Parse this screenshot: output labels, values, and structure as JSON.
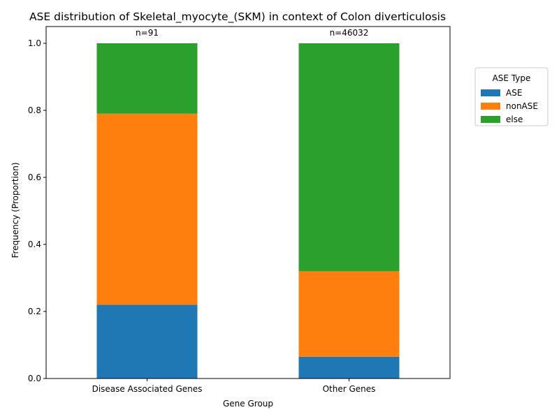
{
  "chart_data": {
    "type": "bar",
    "stacked": true,
    "title": "ASE distribution of Skeletal_myocyte_(SKM) in context of Colon diverticulosis",
    "xlabel": "Gene Group",
    "ylabel": "Frequency (Proportion)",
    "ylim": [
      0,
      1.05
    ],
    "yticks": [
      "0.0",
      "0.2",
      "0.4",
      "0.6",
      "0.8",
      "1.0"
    ],
    "categories": [
      "Disease Associated Genes",
      "Other Genes"
    ],
    "counts": [
      "n=91",
      "n=46032"
    ],
    "series": [
      {
        "name": "ASE",
        "color": "#1f77b4",
        "values": [
          0.22,
          0.065
        ]
      },
      {
        "name": "nonASE",
        "color": "#ff7f0e",
        "values": [
          0.57,
          0.255
        ]
      },
      {
        "name": "else",
        "color": "#2ca02c",
        "values": [
          0.21,
          0.68
        ]
      }
    ],
    "legend": {
      "title": "ASE Type",
      "placement": "outside-top-right"
    },
    "grid": false
  }
}
